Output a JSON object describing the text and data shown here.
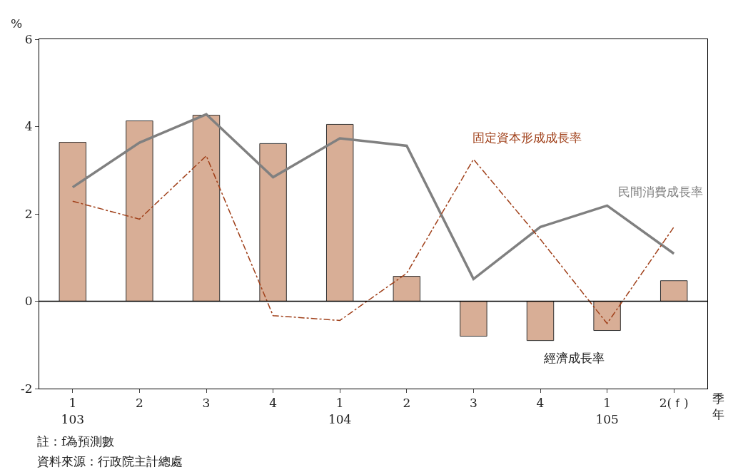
{
  "chart_data": {
    "type": "bar",
    "categories": [
      "1\n103",
      "2",
      "3",
      "4",
      "1\n104",
      "2",
      "3",
      "4",
      "1\n105",
      "2(ｆ)"
    ],
    "xlabel": "季年",
    "ylabel": "%",
    "ylim": [
      -2,
      6
    ],
    "yticks": [
      -2,
      0,
      2,
      4,
      6
    ],
    "legend": false,
    "series": [
      {
        "name": "經濟成長率",
        "color": "#d8ae96",
        "values": [
          3.64,
          4.13,
          4.26,
          3.61,
          4.05,
          0.57,
          -0.8,
          -0.9,
          -0.67,
          0.47
        ]
      },
      {
        "name": "民間消費成長率",
        "type": "line",
        "color": "#808080",
        "line_style": "solid",
        "values": [
          2.61,
          3.63,
          4.28,
          2.84,
          3.73,
          3.56,
          0.51,
          1.7,
          2.19,
          1.09
        ]
      },
      {
        "name": "固定資本形成成長率",
        "type": "line",
        "color": "#a0401a",
        "line_style": "dashdot",
        "values": [
          2.29,
          1.88,
          3.33,
          -0.33,
          -0.44,
          0.64,
          3.25,
          1.42,
          -0.51,
          1.7
        ]
      }
    ],
    "ref_lines": [
      {
        "axis": "y",
        "value": 0,
        "color": "#000000"
      }
    ],
    "annotations": [
      "註：f為預測數",
      "資料來源：行政院主計總處"
    ]
  }
}
